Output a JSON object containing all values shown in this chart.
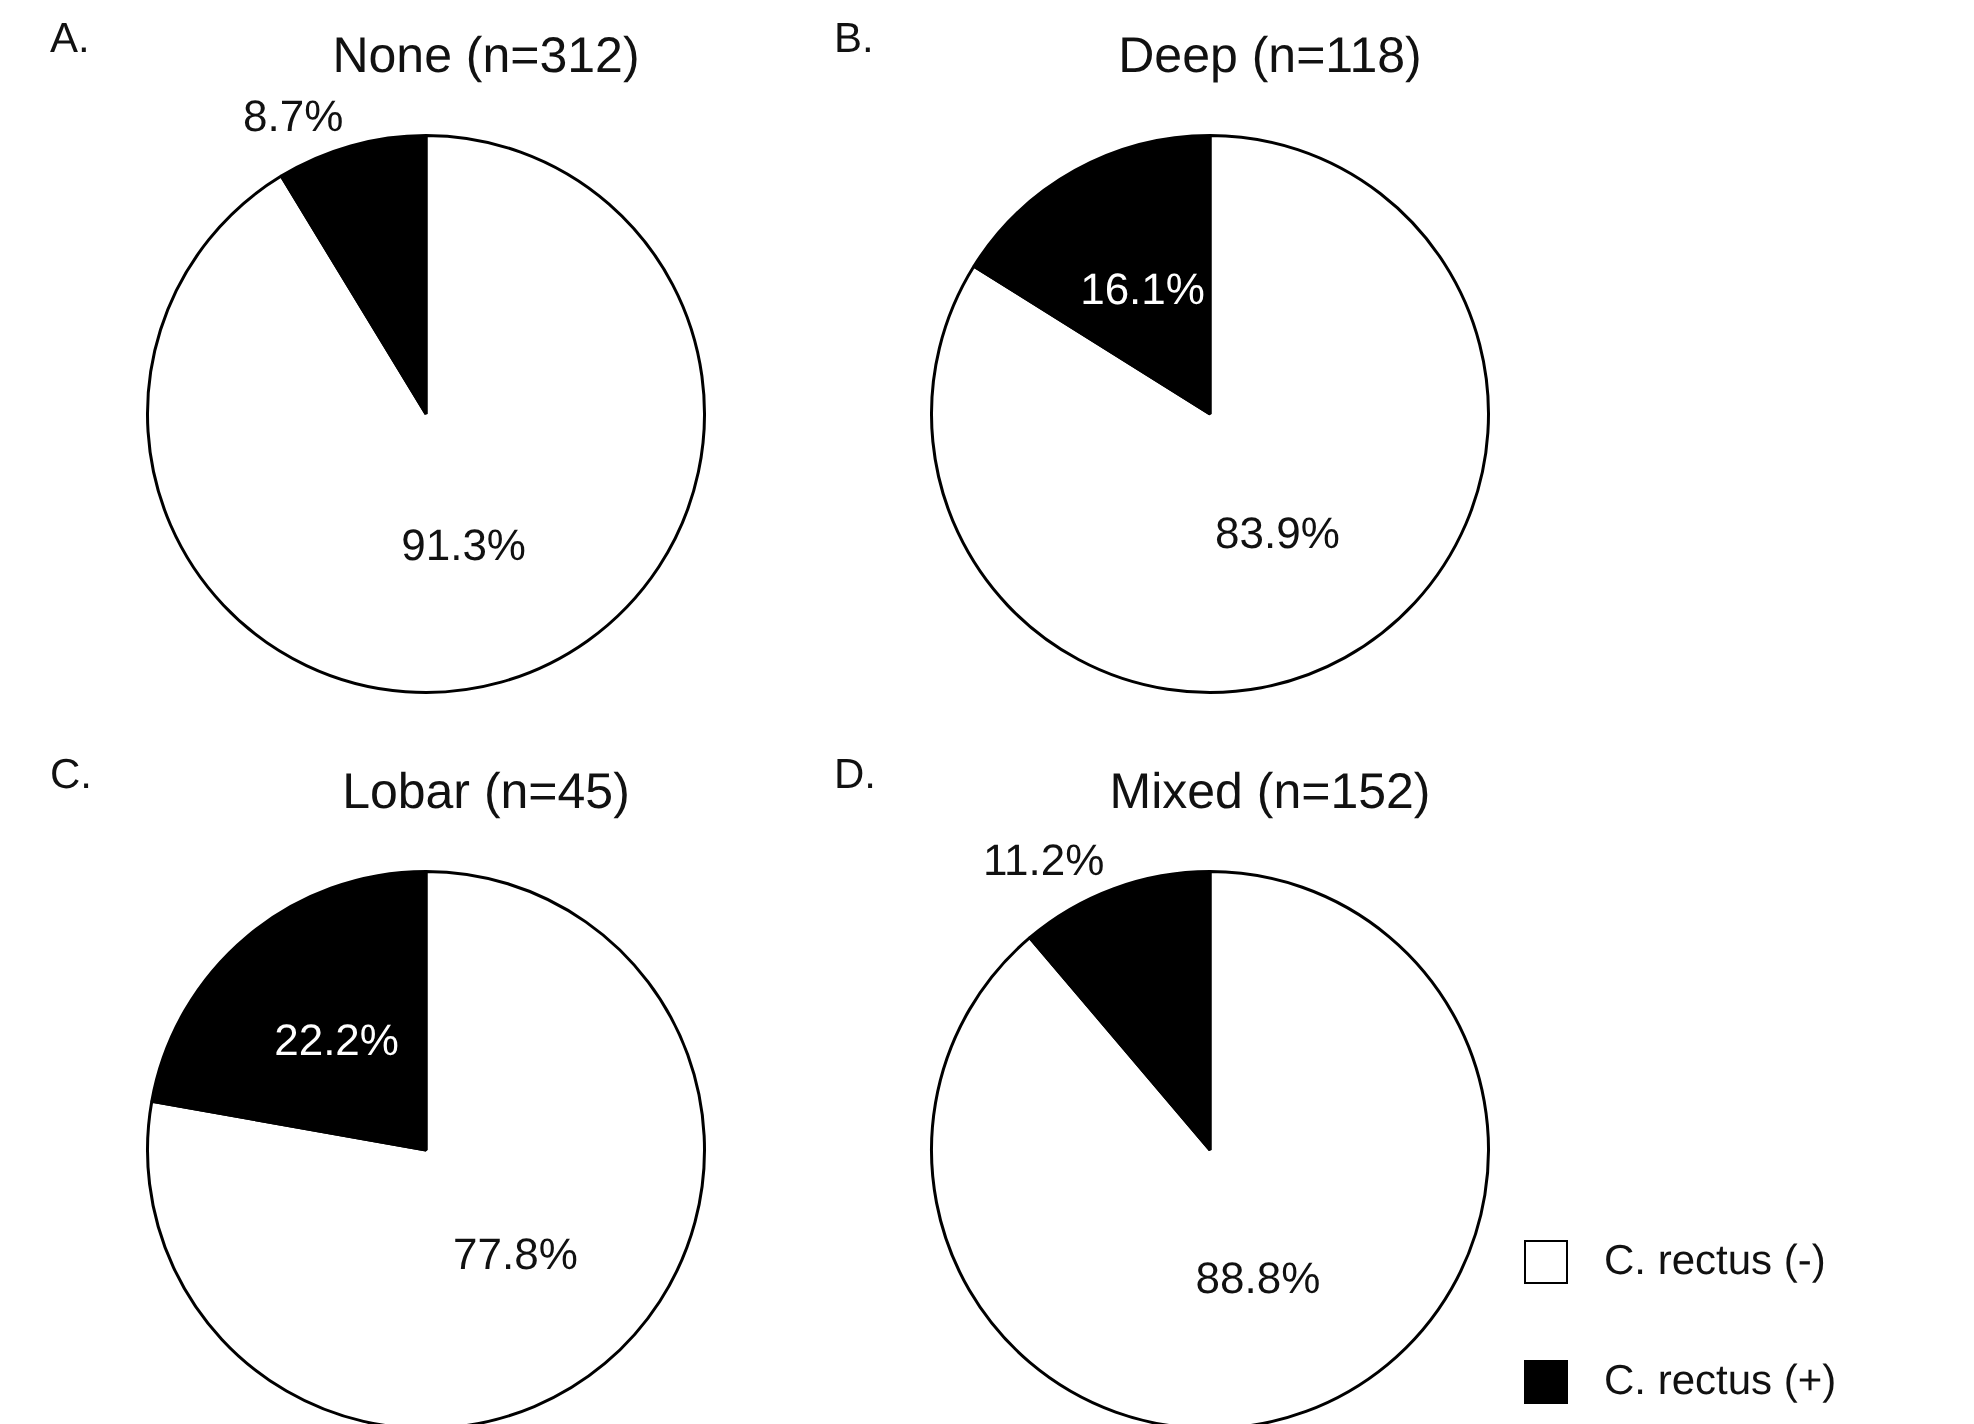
{
  "chart_data": [
    {
      "type": "pie",
      "title": "None (n=312)",
      "annotations": [
        "A."
      ],
      "categories": [
        null,
        null
      ],
      "values": [
        91.3,
        8.7
      ],
      "colors": [
        "#ffffff",
        "#000000"
      ],
      "value_labels": [
        "91.3%",
        "8.7%"
      ]
    },
    {
      "type": "pie",
      "title": "Deep (n=118)",
      "annotations": [
        "B."
      ],
      "categories": [
        null,
        null
      ],
      "values": [
        83.9,
        16.1
      ],
      "colors": [
        "#ffffff",
        "#000000"
      ],
      "value_labels": [
        "83.9%",
        "16.1%"
      ]
    },
    {
      "type": "pie",
      "title": "Lobar (n=45)",
      "annotations": [
        "C."
      ],
      "categories": [
        null,
        null
      ],
      "values": [
        77.8,
        22.2
      ],
      "colors": [
        "#ffffff",
        "#000000"
      ],
      "value_labels": [
        "77.8%",
        "22.2%"
      ]
    },
    {
      "type": "pie",
      "title": "Mixed (n=152)",
      "annotations": [
        "D."
      ],
      "categories": [
        "C. rectus (-)",
        "C. rectus (+)"
      ],
      "values": [
        88.8,
        11.2
      ],
      "colors": [
        "#ffffff",
        "#000000"
      ],
      "value_labels": [
        "88.8%",
        "11.2%"
      ],
      "legend": "bottom right"
    }
  ]
}
